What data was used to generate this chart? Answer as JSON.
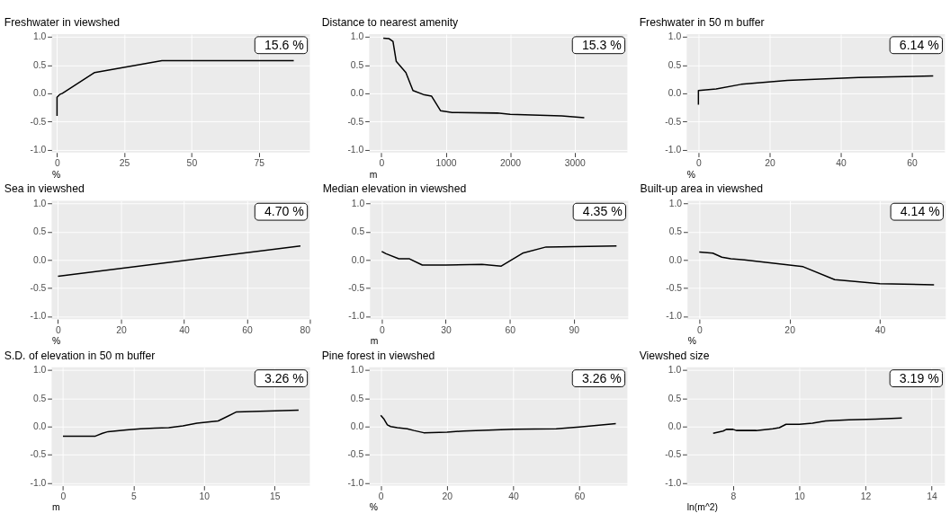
{
  "chart_data": [
    {
      "type": "line",
      "title": "Freshwater in viewshed",
      "xlabel": "%",
      "annotations": [
        "15.6 %"
      ],
      "xlim": [
        -2,
        94
      ],
      "xticks": [
        0,
        25,
        50,
        75
      ],
      "ylim": [
        -1.05,
        1.05
      ],
      "yticks": [
        {
          "value": -1,
          "label": "-1.0"
        },
        {
          "value": -0.5,
          "label": "-0.5"
        },
        {
          "value": 0,
          "label": "0.0"
        },
        {
          "value": 0.5,
          "label": "0.5"
        },
        {
          "value": 1,
          "label": "1.0"
        }
      ],
      "grid": true,
      "color": "#000000",
      "x": [
        0,
        0,
        1,
        2,
        14,
        39,
        88
      ],
      "values": [
        -0.4,
        -0.07,
        -0.02,
        0.0,
        0.37,
        0.58,
        0.58
      ]
    },
    {
      "type": "line",
      "title": "Distance to nearest amenity",
      "xlabel": "m",
      "annotations": [
        "15.3 %"
      ],
      "xlim": [
        -190,
        3820
      ],
      "xticks": [
        0,
        1000,
        2000,
        3000
      ],
      "ylim": [
        -1.05,
        1.05
      ],
      "yticks": [
        {
          "value": -1,
          "label": "-1.0"
        },
        {
          "value": -0.5,
          "label": "-0.5"
        },
        {
          "value": 0,
          "label": "0.0"
        },
        {
          "value": 0.5,
          "label": "0.5"
        },
        {
          "value": 1,
          "label": "1.0"
        }
      ],
      "grid": true,
      "color": "#000000",
      "x": [
        30,
        120,
        180,
        230,
        380,
        490,
        650,
        780,
        920,
        1100,
        1800,
        2000,
        2800,
        3150
      ],
      "values": [
        0.98,
        0.97,
        0.92,
        0.57,
        0.37,
        0.05,
        -0.02,
        -0.05,
        -0.31,
        -0.34,
        -0.35,
        -0.37,
        -0.4,
        -0.43
      ]
    },
    {
      "type": "line",
      "title": "Freshwater in 50 m buffer",
      "xlabel": "%",
      "annotations": [
        "6.14 %"
      ],
      "xlim": [
        -3.3,
        69.3
      ],
      "xticks": [
        0,
        20,
        40,
        60
      ],
      "ylim": [
        -1.05,
        1.05
      ],
      "yticks": [
        {
          "value": -1,
          "label": "-1.0"
        },
        {
          "value": -0.5,
          "label": "-0.5"
        },
        {
          "value": 0,
          "label": "0.0"
        },
        {
          "value": 0.5,
          "label": "0.5"
        },
        {
          "value": 1,
          "label": "1.0"
        }
      ],
      "grid": true,
      "color": "#000000",
      "x": [
        0,
        0,
        5,
        12,
        25,
        45,
        66
      ],
      "values": [
        -0.2,
        0.05,
        0.08,
        0.16,
        0.23,
        0.28,
        0.31
      ]
    },
    {
      "type": "line",
      "title": "Sea in viewshed",
      "xlabel": "%",
      "annotations": [
        "4.70 %"
      ],
      "xlim": [
        -2,
        80
      ],
      "xticks": [
        0,
        20,
        40,
        60,
        80
      ],
      "ylim": [
        -1.05,
        1.05
      ],
      "yticks": [
        {
          "value": -1,
          "label": "-1.0"
        },
        {
          "value": -0.5,
          "label": "-0.5"
        },
        {
          "value": 0,
          "label": "0.0"
        },
        {
          "value": 0.5,
          "label": "0.5"
        },
        {
          "value": 1,
          "label": "1.0"
        }
      ],
      "grid": true,
      "color": "#000000",
      "x": [
        0,
        77
      ],
      "values": [
        -0.29,
        0.25
      ]
    },
    {
      "type": "line",
      "title": "Median elevation in viewshed",
      "xlabel": "m",
      "annotations": [
        "4.35 %"
      ],
      "xlim": [
        -5.5,
        115.5
      ],
      "xticks": [
        0,
        30,
        60,
        90
      ],
      "ylim": [
        -1.05,
        1.05
      ],
      "yticks": [
        {
          "value": -1,
          "label": "-1.0"
        },
        {
          "value": -0.5,
          "label": "-0.5"
        },
        {
          "value": 0,
          "label": "0.0"
        },
        {
          "value": 0.5,
          "label": "0.5"
        },
        {
          "value": 1,
          "label": "1.0"
        }
      ],
      "grid": true,
      "color": "#000000",
      "x": [
        0,
        2,
        8,
        13,
        19,
        30,
        47,
        56,
        66,
        77,
        110
      ],
      "values": [
        0.15,
        0.11,
        0.02,
        0.02,
        -0.09,
        -0.09,
        -0.08,
        -0.11,
        0.12,
        0.23,
        0.25
      ]
    },
    {
      "type": "line",
      "title": "Built-up area in viewshed",
      "xlabel": "%",
      "annotations": [
        "4.14 %"
      ],
      "xlim": [
        -2.6,
        54.6
      ],
      "xticks": [
        0,
        20,
        40
      ],
      "ylim": [
        -1.05,
        1.05
      ],
      "yticks": [
        {
          "value": -1,
          "label": "-1.0"
        },
        {
          "value": -0.5,
          "label": "-0.5"
        },
        {
          "value": 0,
          "label": "0.0"
        },
        {
          "value": 0.5,
          "label": "0.5"
        },
        {
          "value": 1,
          "label": "1.0"
        }
      ],
      "grid": true,
      "color": "#000000",
      "x": [
        0,
        3,
        5,
        7,
        10,
        23,
        30,
        40,
        52
      ],
      "values": [
        0.14,
        0.12,
        0.05,
        0.02,
        0.0,
        -0.12,
        -0.35,
        -0.42,
        -0.44
      ]
    },
    {
      "type": "line",
      "title": "S.D. of elevation in 50 m buffer",
      "xlabel": "m",
      "annotations": [
        "3.26 %"
      ],
      "xlim": [
        -0.8,
        17.5
      ],
      "xticks": [
        0,
        5,
        10,
        15
      ],
      "ylim": [
        -1.05,
        1.05
      ],
      "yticks": [
        {
          "value": -1,
          "label": "-1.0"
        },
        {
          "value": -0.5,
          "label": "-0.5"
        },
        {
          "value": 0,
          "label": "0.0"
        },
        {
          "value": 0.5,
          "label": "0.5"
        },
        {
          "value": 1,
          "label": "1.0"
        }
      ],
      "grid": true,
      "color": "#000000",
      "x": [
        0,
        2.3,
        2.8,
        3.2,
        4.5,
        5.5,
        6.5,
        7.5,
        8.5,
        9.5,
        11,
        12.3,
        16.7
      ],
      "values": [
        -0.17,
        -0.17,
        -0.12,
        -0.09,
        -0.06,
        -0.04,
        -0.03,
        -0.02,
        0.01,
        0.06,
        0.1,
        0.26,
        0.29
      ]
    },
    {
      "type": "line",
      "title": "Pine forest in viewshed",
      "xlabel": "%",
      "annotations": [
        "3.26 %"
      ],
      "xlim": [
        -3.5,
        74.5
      ],
      "xticks": [
        0,
        20,
        40,
        60
      ],
      "ylim": [
        -1.05,
        1.05
      ],
      "yticks": [
        {
          "value": -1,
          "label": "-1.0"
        },
        {
          "value": -0.5,
          "label": "-0.5"
        },
        {
          "value": 0,
          "label": "0.0"
        },
        {
          "value": 0.5,
          "label": "0.5"
        },
        {
          "value": 1,
          "label": "1.0"
        }
      ],
      "grid": true,
      "color": "#000000",
      "x": [
        0,
        1,
        2,
        3,
        5,
        8,
        10,
        13,
        20,
        25,
        40,
        53,
        60,
        71
      ],
      "values": [
        0.2,
        0.13,
        0.03,
        0.0,
        -0.02,
        -0.04,
        -0.07,
        -0.11,
        -0.1,
        -0.08,
        -0.05,
        -0.04,
        -0.01,
        0.05
      ]
    },
    {
      "type": "line",
      "title": "Viewshed size",
      "xlabel": "ln(m^2)",
      "annotations": [
        "3.19 %"
      ],
      "xlim": [
        6.6,
        14.4
      ],
      "xticks": [
        8,
        10,
        12,
        14
      ],
      "ylim": [
        -1.05,
        1.05
      ],
      "yticks": [
        {
          "value": -1,
          "label": "-1.0"
        },
        {
          "value": -0.5,
          "label": "-0.5"
        },
        {
          "value": 0,
          "label": "0.0"
        },
        {
          "value": 0.5,
          "label": "0.5"
        },
        {
          "value": 1,
          "label": "1.0"
        }
      ],
      "grid": true,
      "color": "#000000",
      "x": [
        7.4,
        7.7,
        7.8,
        8.0,
        8.1,
        8.7,
        9.2,
        9.4,
        9.6,
        10.0,
        10.4,
        10.8,
        11.5,
        12.3,
        13.1
      ],
      "values": [
        -0.12,
        -0.08,
        -0.05,
        -0.05,
        -0.07,
        -0.07,
        -0.04,
        -0.02,
        0.04,
        0.04,
        0.06,
        0.1,
        0.12,
        0.13,
        0.15
      ]
    }
  ]
}
